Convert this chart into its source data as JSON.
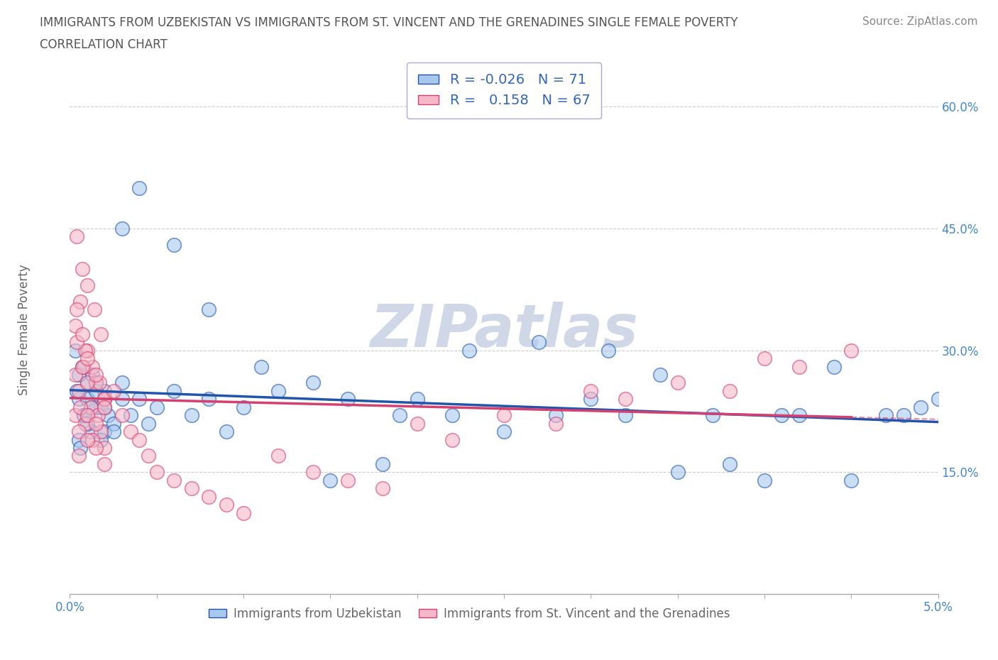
{
  "title_line1": "IMMIGRANTS FROM UZBEKISTAN VS IMMIGRANTS FROM ST. VINCENT AND THE GRENADINES SINGLE FEMALE POVERTY",
  "title_line2": "CORRELATION CHART",
  "source_text": "Source: ZipAtlas.com",
  "ylabel": "Single Female Poverty",
  "xlim": [
    0.0,
    0.05
  ],
  "ylim": [
    0.0,
    0.65
  ],
  "yticks": [
    0.15,
    0.3,
    0.45,
    0.6
  ],
  "ytick_labels": [
    "15.0%",
    "30.0%",
    "45.0%",
    "60.0%"
  ],
  "xticks": [
    0.0,
    0.005,
    0.01,
    0.015,
    0.02,
    0.025,
    0.03,
    0.035,
    0.04,
    0.045,
    0.05
  ],
  "xtick_labels_major": {
    "0.0": "0.0%",
    "0.05": "5.0%"
  },
  "series1_name": "Immigrants from Uzbekistan",
  "series1_color": "#a8c8f0",
  "series1_line_color": "#2255aa",
  "series1_R": -0.026,
  "series1_N": 71,
  "series2_name": "Immigrants from St. Vincent and the Grenadines",
  "series2_color": "#f5b8c8",
  "series2_line_color": "#d44070",
  "series2_R": 0.158,
  "series2_N": 67,
  "bg_color": "#ffffff",
  "grid_color": "#cccccc",
  "watermark": "ZIPatlas",
  "watermark_color": "#d0d8e8",
  "uzbekistan_x": [
    0.0005,
    0.0008,
    0.001,
    0.0012,
    0.0015,
    0.002,
    0.0005,
    0.0007,
    0.001,
    0.0013,
    0.0018,
    0.0022,
    0.0003,
    0.0006,
    0.001,
    0.0015,
    0.002,
    0.0004,
    0.0008,
    0.0012,
    0.0018,
    0.0025,
    0.003,
    0.0005,
    0.001,
    0.0015,
    0.002,
    0.0025,
    0.003,
    0.0035,
    0.004,
    0.0045,
    0.005,
    0.006,
    0.007,
    0.008,
    0.009,
    0.01,
    0.012,
    0.015,
    0.018,
    0.02,
    0.022,
    0.025,
    0.028,
    0.03,
    0.032,
    0.035,
    0.038,
    0.04,
    0.042,
    0.045,
    0.048,
    0.05,
    0.003,
    0.004,
    0.006,
    0.008,
    0.011,
    0.014,
    0.016,
    0.019,
    0.023,
    0.027,
    0.031,
    0.034,
    0.037,
    0.041,
    0.044,
    0.047,
    0.049
  ],
  "uzbekistan_y": [
    0.24,
    0.22,
    0.26,
    0.2,
    0.23,
    0.25,
    0.19,
    0.28,
    0.21,
    0.27,
    0.23,
    0.22,
    0.3,
    0.18,
    0.24,
    0.26,
    0.2,
    0.25,
    0.22,
    0.23,
    0.19,
    0.21,
    0.24,
    0.27,
    0.22,
    0.25,
    0.23,
    0.2,
    0.26,
    0.22,
    0.24,
    0.21,
    0.23,
    0.25,
    0.22,
    0.24,
    0.2,
    0.23,
    0.25,
    0.14,
    0.16,
    0.24,
    0.22,
    0.2,
    0.22,
    0.24,
    0.22,
    0.15,
    0.16,
    0.14,
    0.22,
    0.14,
    0.22,
    0.24,
    0.45,
    0.5,
    0.43,
    0.35,
    0.28,
    0.26,
    0.24,
    0.22,
    0.3,
    0.31,
    0.3,
    0.27,
    0.22,
    0.22,
    0.28,
    0.22,
    0.23
  ],
  "vincent_x": [
    0.0003,
    0.0005,
    0.0008,
    0.001,
    0.0012,
    0.0015,
    0.0018,
    0.002,
    0.0003,
    0.0006,
    0.0009,
    0.0013,
    0.0017,
    0.002,
    0.0004,
    0.0007,
    0.001,
    0.0014,
    0.0018,
    0.0003,
    0.0006,
    0.0009,
    0.0013,
    0.0016,
    0.002,
    0.0004,
    0.0007,
    0.001,
    0.0004,
    0.0007,
    0.001,
    0.0015,
    0.002,
    0.0005,
    0.001,
    0.0015,
    0.002,
    0.0005,
    0.001,
    0.0015,
    0.002,
    0.0025,
    0.003,
    0.0035,
    0.004,
    0.0045,
    0.005,
    0.006,
    0.007,
    0.008,
    0.009,
    0.01,
    0.012,
    0.014,
    0.016,
    0.018,
    0.02,
    0.022,
    0.025,
    0.028,
    0.03,
    0.032,
    0.035,
    0.038,
    0.04,
    0.042,
    0.045
  ],
  "vincent_y": [
    0.22,
    0.25,
    0.28,
    0.3,
    0.23,
    0.26,
    0.2,
    0.24,
    0.33,
    0.36,
    0.3,
    0.28,
    0.26,
    0.24,
    0.44,
    0.4,
    0.38,
    0.35,
    0.32,
    0.27,
    0.23,
    0.21,
    0.19,
    0.22,
    0.18,
    0.31,
    0.28,
    0.26,
    0.35,
    0.32,
    0.29,
    0.27,
    0.24,
    0.2,
    0.22,
    0.18,
    0.16,
    0.17,
    0.19,
    0.21,
    0.23,
    0.25,
    0.22,
    0.2,
    0.19,
    0.17,
    0.15,
    0.14,
    0.13,
    0.12,
    0.11,
    0.1,
    0.17,
    0.15,
    0.14,
    0.13,
    0.21,
    0.19,
    0.22,
    0.21,
    0.25,
    0.24,
    0.26,
    0.25,
    0.29,
    0.28,
    0.3
  ]
}
